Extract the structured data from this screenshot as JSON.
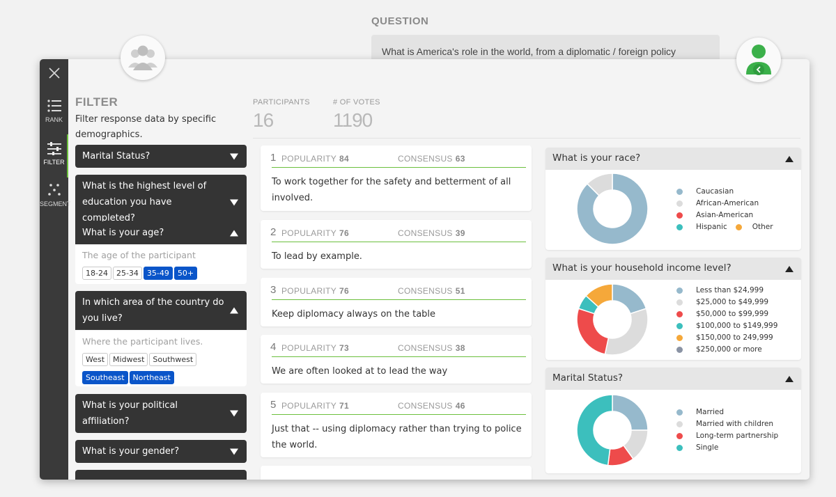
{
  "question": {
    "label": "QUESTION",
    "text": "What is America's role in the world, from a diplomatic / foreign policy perspective?"
  },
  "colors": {
    "accent_green": "#6bbf3c",
    "selected_chip": "#0a55c9",
    "sidebar": "#3a3a3a",
    "accordion": "#343434"
  },
  "icons": {
    "group_avatar": "group-icon",
    "user_avatar": "user-icon",
    "back": "chevron-left-icon",
    "close": "close-icon"
  },
  "sidebar": {
    "items": [
      {
        "label": "RANK",
        "icon": "list-icon"
      },
      {
        "label": "FILTER",
        "icon": "sliders-icon",
        "active": true
      },
      {
        "label": "SEGMENT",
        "icon": "scatter-icon"
      }
    ]
  },
  "filter": {
    "title": "FILTER",
    "description": "Filter response data by specific demographics.",
    "sections": [
      {
        "title": "Marital Status?",
        "open": false
      },
      {
        "title": "What is the highest level of education you have completed?",
        "open": false
      },
      {
        "title": "What is your age?",
        "open": true,
        "placeholder": "The age of the participant",
        "options": [
          {
            "label": "18-24",
            "selected": false
          },
          {
            "label": "25-34",
            "selected": false
          },
          {
            "label": "35-49",
            "selected": true
          },
          {
            "label": "50+",
            "selected": true
          }
        ]
      },
      {
        "title": "In which area of the country do you live?",
        "open": true,
        "placeholder": "Where the participant lives.",
        "options": [
          {
            "label": "West",
            "selected": false
          },
          {
            "label": "Midwest",
            "selected": false
          },
          {
            "label": "Southwest",
            "selected": false
          },
          {
            "label": "Southeast",
            "selected": true
          },
          {
            "label": "Northeast",
            "selected": true
          }
        ]
      },
      {
        "title": "What is your political affiliation?",
        "open": false
      },
      {
        "title": "What is your gender?",
        "open": false
      }
    ]
  },
  "stats": {
    "participants_label": "PARTICIPANTS",
    "participants": "16",
    "votes_label": "# OF VOTES",
    "votes": "1190"
  },
  "responses_labels": {
    "popularity": "POPULARITY",
    "consensus": "CONSENSUS"
  },
  "responses": [
    {
      "rank": "1",
      "popularity": "84",
      "consensus": "63",
      "text": "To work together for the safety and betterment of all involved."
    },
    {
      "rank": "2",
      "popularity": "76",
      "consensus": "39",
      "text": "To lead by example."
    },
    {
      "rank": "3",
      "popularity": "76",
      "consensus": "51",
      "text": "Keep diplomacy always on the table"
    },
    {
      "rank": "4",
      "popularity": "73",
      "consensus": "38",
      "text": "We are often looked at to lead the way"
    },
    {
      "rank": "5",
      "popularity": "71",
      "consensus": "46",
      "text": "Just that -- using diplomacy rather than trying to police the world."
    }
  ],
  "chart_data": [
    {
      "type": "pie",
      "title": "What is your race?",
      "categories": [
        "Caucasian",
        "African-American",
        "Asian-American",
        "Hispanic",
        "Other"
      ],
      "values": [
        87.5,
        12.5,
        0,
        0,
        0
      ],
      "colors": [
        "#96b9cc",
        "#dcdcdc",
        "#ee4b4b",
        "#3cbfbd",
        "#f5a83a"
      ]
    },
    {
      "type": "pie",
      "title": "What is your household income level?",
      "categories": [
        "Less than $24,999",
        "$25,000 to $49,999",
        "$50,000 to $99,999",
        "$100,000 to $149,999",
        "$150,000 to 249,999",
        "$250,000 or more"
      ],
      "values": [
        18.75,
        31.25,
        25,
        6.25,
        12.5,
        0
      ],
      "colors": [
        "#96b9cc",
        "#dcdcdc",
        "#ee4b4b",
        "#3cbfbd",
        "#f5a83a",
        "#8a93a4"
      ]
    },
    {
      "type": "pie",
      "title": "Marital Status?",
      "categories": [
        "Married",
        "Married with children",
        "Long-term partnership",
        "Single"
      ],
      "values": [
        25,
        15,
        12,
        48
      ],
      "colors": [
        "#96b9cc",
        "#dcdcdc",
        "#ee4b4b",
        "#3cbfbd"
      ]
    }
  ]
}
